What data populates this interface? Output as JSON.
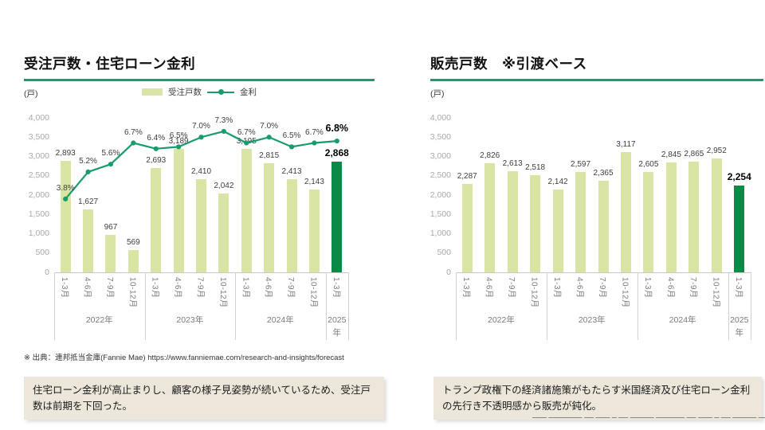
{
  "theme": {
    "accent_green": "#1d9a70",
    "bar_color": "#d8e5a4",
    "bar_highlight_color": "#0b8a47",
    "line_color": "#1a9b6c",
    "comment_bg": "#ede7db"
  },
  "source_note": "※ 出典：連邦抵当金庫(Fannie Mae) https://www.fanniemae.com/research-and-insights/forecast",
  "footer": {
    "clipped_text": "─── ─────── ── ─── ─ ── ───── ────── ── ─── ─ ── ───── ──────"
  },
  "charts": [
    {
      "title": "受注戸数・住宅ローン金利",
      "unit_label": "(戸)",
      "legend": [
        {
          "label": "受注戸数"
        },
        {
          "label": "金利"
        }
      ],
      "comment": "住宅ローン金利が高止まりし、顧客の様子見姿勢が続いているため、受注戸数は前期を下回った。",
      "chart_data": {
        "type": "bar+line",
        "categories": [
          "1-3月",
          "4-6月",
          "7-9月",
          "10-12月",
          "1-3月",
          "4-6月",
          "7-9月",
          "10-12月",
          "1-3月",
          "4-6月",
          "7-9月",
          "10-12月",
          "1-3月"
        ],
        "year_groups": [
          {
            "label": "2022年",
            "span": 4
          },
          {
            "label": "2023年",
            "span": 4
          },
          {
            "label": "2024年",
            "span": 4
          },
          {
            "label": "2025年",
            "span": 1
          }
        ],
        "series": [
          {
            "name": "受注戸数",
            "type": "bar",
            "values": [
              2893,
              1627,
              967,
              569,
              2693,
              3189,
              2410,
              2042,
              3195,
              2815,
              2413,
              2143,
              2868
            ],
            "labels": [
              "2,893",
              "1,627",
              "967",
              "569",
              "2,693",
              "3,189",
              "2,410",
              "2,042",
              "3,195",
              "2,815",
              "2,413",
              "2,143",
              "2,868"
            ]
          },
          {
            "name": "金利",
            "type": "line",
            "values": [
              3.8,
              5.2,
              5.6,
              6.7,
              6.4,
              6.5,
              7.0,
              7.3,
              6.7,
              7.0,
              6.5,
              6.7,
              6.8
            ],
            "labels": [
              "3.8%",
              "5.2%",
              "5.6%",
              "6.7%",
              "6.4%",
              "6.5%",
              "7.0%",
              "7.3%",
              "6.7%",
              "7.0%",
              "6.5%",
              "6.7%",
              "6.8%"
            ]
          }
        ],
        "ylim": [
          0,
          4000
        ],
        "yticks": [
          "0",
          "500",
          "1,000",
          "1,500",
          "2,000",
          "2,500",
          "3,000",
          "3,500",
          "4,000"
        ],
        "grid": false,
        "legend_position": "top",
        "highlight_last": true
      }
    },
    {
      "title": "販売戸数　※引渡ベース",
      "unit_label": "(戸)",
      "legend": [],
      "comment": "トランプ政権下の経済諸施策がもたらす米国経済及び住宅ローン金利の先行き不透明感から販売が鈍化。",
      "chart_data": {
        "type": "bar",
        "categories": [
          "1-3月",
          "4-6月",
          "7-9月",
          "10-12月",
          "1-3月",
          "4-6月",
          "7-9月",
          "10-12月",
          "1-3月",
          "4-6月",
          "7-9月",
          "10-12月",
          "1-3月"
        ],
        "year_groups": [
          {
            "label": "2022年",
            "span": 4
          },
          {
            "label": "2023年",
            "span": 4
          },
          {
            "label": "2024年",
            "span": 4
          },
          {
            "label": "2025年",
            "span": 1
          }
        ],
        "series": [
          {
            "name": "販売戸数",
            "type": "bar",
            "values": [
              2287,
              2826,
              2613,
              2518,
              2142,
              2597,
              2365,
              3117,
              2605,
              2845,
              2865,
              2952,
              2254
            ],
            "labels": [
              "2,287",
              "2,826",
              "2,613",
              "2,518",
              "2,142",
              "2,597",
              "2,365",
              "3,117",
              "2,605",
              "2,845",
              "2,865",
              "2,952",
              "2,254"
            ]
          }
        ],
        "ylim": [
          0,
          4000
        ],
        "yticks": [
          "0",
          "500",
          "1,000",
          "1,500",
          "2,000",
          "2,500",
          "3,000",
          "3,500",
          "4,000"
        ],
        "grid": false,
        "highlight_last": true
      }
    }
  ]
}
